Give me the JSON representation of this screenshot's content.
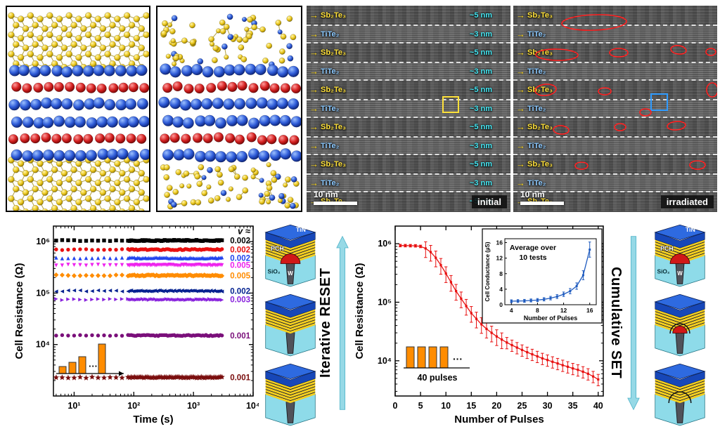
{
  "tem": {
    "initial": {
      "corner_label": "initial",
      "scale_label": "10 nm"
    },
    "irradiated": {
      "corner_label": "irradiated",
      "scale_label": "10 nm"
    },
    "layer_names": {
      "sb": "Sb₂Te₃",
      "ti": "TiTe₂"
    },
    "thickness": {
      "sb": "~5 nm",
      "ti": "~3 nm"
    },
    "layers": [
      "sb",
      "ti",
      "sb",
      "ti",
      "sb",
      "ti",
      "sb",
      "ti",
      "sb",
      "ti",
      "sb"
    ]
  },
  "reset_column": {
    "label": "Iterative RESET"
  },
  "set_column": {
    "label": "Cumulative SET"
  },
  "device": {
    "labels": {
      "tin": "TiN",
      "pch": "PCH",
      "sio2": "SiO₂",
      "w": "W"
    }
  },
  "colors": {
    "arrow_cyan": "#96d9e6",
    "sb_label": "#ffe13a",
    "ti_label": "#8cc9ff",
    "thickness_label": "#45e6f2",
    "annotation_red": "#ff2020",
    "annotation_blue": "#2f9bff",
    "annotation_yellow": "#ffe13a"
  },
  "chart_data": [
    {
      "id": "retention",
      "type": "scatter",
      "xlabel": "Time (s)",
      "ylabel": "Cell Resistance (Ω)",
      "xscale": "log",
      "yscale": "log",
      "xlim": [
        4.5,
        10000
      ],
      "ylim": [
        1000,
        2000000
      ],
      "xtick_values": [
        10,
        100,
        1000,
        10000
      ],
      "xtick_labels": [
        "10¹",
        "10²",
        "10³",
        "10⁴"
      ],
      "ytick_values": [
        10000,
        100000,
        1000000
      ],
      "ytick_labels": [
        "10⁴",
        "10⁵",
        "10⁶"
      ],
      "legend_header": "v ≈",
      "time_span_s": [
        5,
        3000
      ],
      "series": [
        {
          "marker": "square",
          "color": "#000000",
          "resistance_ohm": 1050000,
          "drift_v": "0.002"
        },
        {
          "marker": "circle",
          "color": "#e81010",
          "resistance_ohm": 700000,
          "drift_v": "0.002"
        },
        {
          "marker": "tri-up",
          "color": "#2244ee",
          "resistance_ohm": 480000,
          "drift_v": "0.002"
        },
        {
          "marker": "tri-down",
          "color": "#ee22ee",
          "resistance_ohm": 350000,
          "drift_v": "0.005"
        },
        {
          "marker": "diamond",
          "color": "#ff8c00",
          "resistance_ohm": 220000,
          "drift_v": "0.005"
        },
        {
          "marker": "tri-left",
          "color": "#001f8f",
          "resistance_ohm": 110000,
          "drift_v": "0.002"
        },
        {
          "marker": "tri-right",
          "color": "#8822dd",
          "resistance_ohm": 75000,
          "drift_v": "0.003"
        },
        {
          "marker": "circle",
          "color": "#7a0f7a",
          "resistance_ohm": 15000,
          "drift_v": "0.001"
        },
        {
          "marker": "star",
          "color": "#7a0d0d",
          "resistance_ohm": 2300,
          "drift_v": "0.001"
        }
      ],
      "inset_pulses": {
        "dots": "···"
      }
    },
    {
      "id": "cumulative_set",
      "type": "line",
      "xlabel": "Number of Pulses",
      "ylabel": "Cell Resistance (Ω)",
      "yscale": "log",
      "xlim": [
        0,
        41
      ],
      "ylim": [
        2500,
        2000000
      ],
      "xticks": [
        0,
        5,
        10,
        15,
        20,
        25,
        30,
        35,
        40
      ],
      "ytick_values": [
        10000,
        100000,
        1000000
      ],
      "ytick_labels": [
        "10⁴",
        "10⁵",
        "10⁶"
      ],
      "series": [
        {
          "color": "#e81010",
          "x": [
            1,
            2,
            3,
            4,
            5,
            6,
            7,
            8,
            9,
            10,
            11,
            12,
            13,
            14,
            15,
            16,
            17,
            18,
            19,
            20,
            21,
            22,
            23,
            24,
            25,
            26,
            27,
            28,
            29,
            30,
            31,
            32,
            33,
            34,
            35,
            36,
            37,
            38,
            39,
            40
          ],
          "y": [
            930000,
            928000,
            925000,
            921000,
            900000,
            830000,
            720000,
            575000,
            430000,
            310000,
            220000,
            155000,
            115000,
            86000,
            65000,
            52000,
            42000,
            35000,
            30000,
            26000,
            23000,
            20500,
            18500,
            16800,
            15300,
            14000,
            12900,
            11900,
            11000,
            10300,
            9600,
            9000,
            8400,
            7900,
            7400,
            7000,
            6500,
            6000,
            5400,
            4800
          ]
        }
      ],
      "inset_conductance": {
        "annotation": "Average over 10 tests",
        "xlabel": "Number of Pulses",
        "ylabel": "Cell Conductance (µS)",
        "color": "#1f5bbf",
        "xlim": [
          3,
          17
        ],
        "ylim": [
          0,
          17
        ],
        "xticks": [
          4,
          8,
          12,
          16
        ],
        "yticks": [
          0,
          4,
          8,
          12,
          16
        ],
        "x": [
          4,
          5,
          6,
          7,
          8,
          9,
          10,
          11,
          12,
          13,
          14,
          15,
          16
        ],
        "y": [
          0.9,
          0.95,
          1.0,
          1.1,
          1.2,
          1.4,
          1.7,
          2.1,
          2.7,
          3.5,
          4.8,
          7.6,
          14.2
        ]
      },
      "inset_pulses": {
        "label": "40 pulses",
        "dots": "···"
      }
    }
  ]
}
